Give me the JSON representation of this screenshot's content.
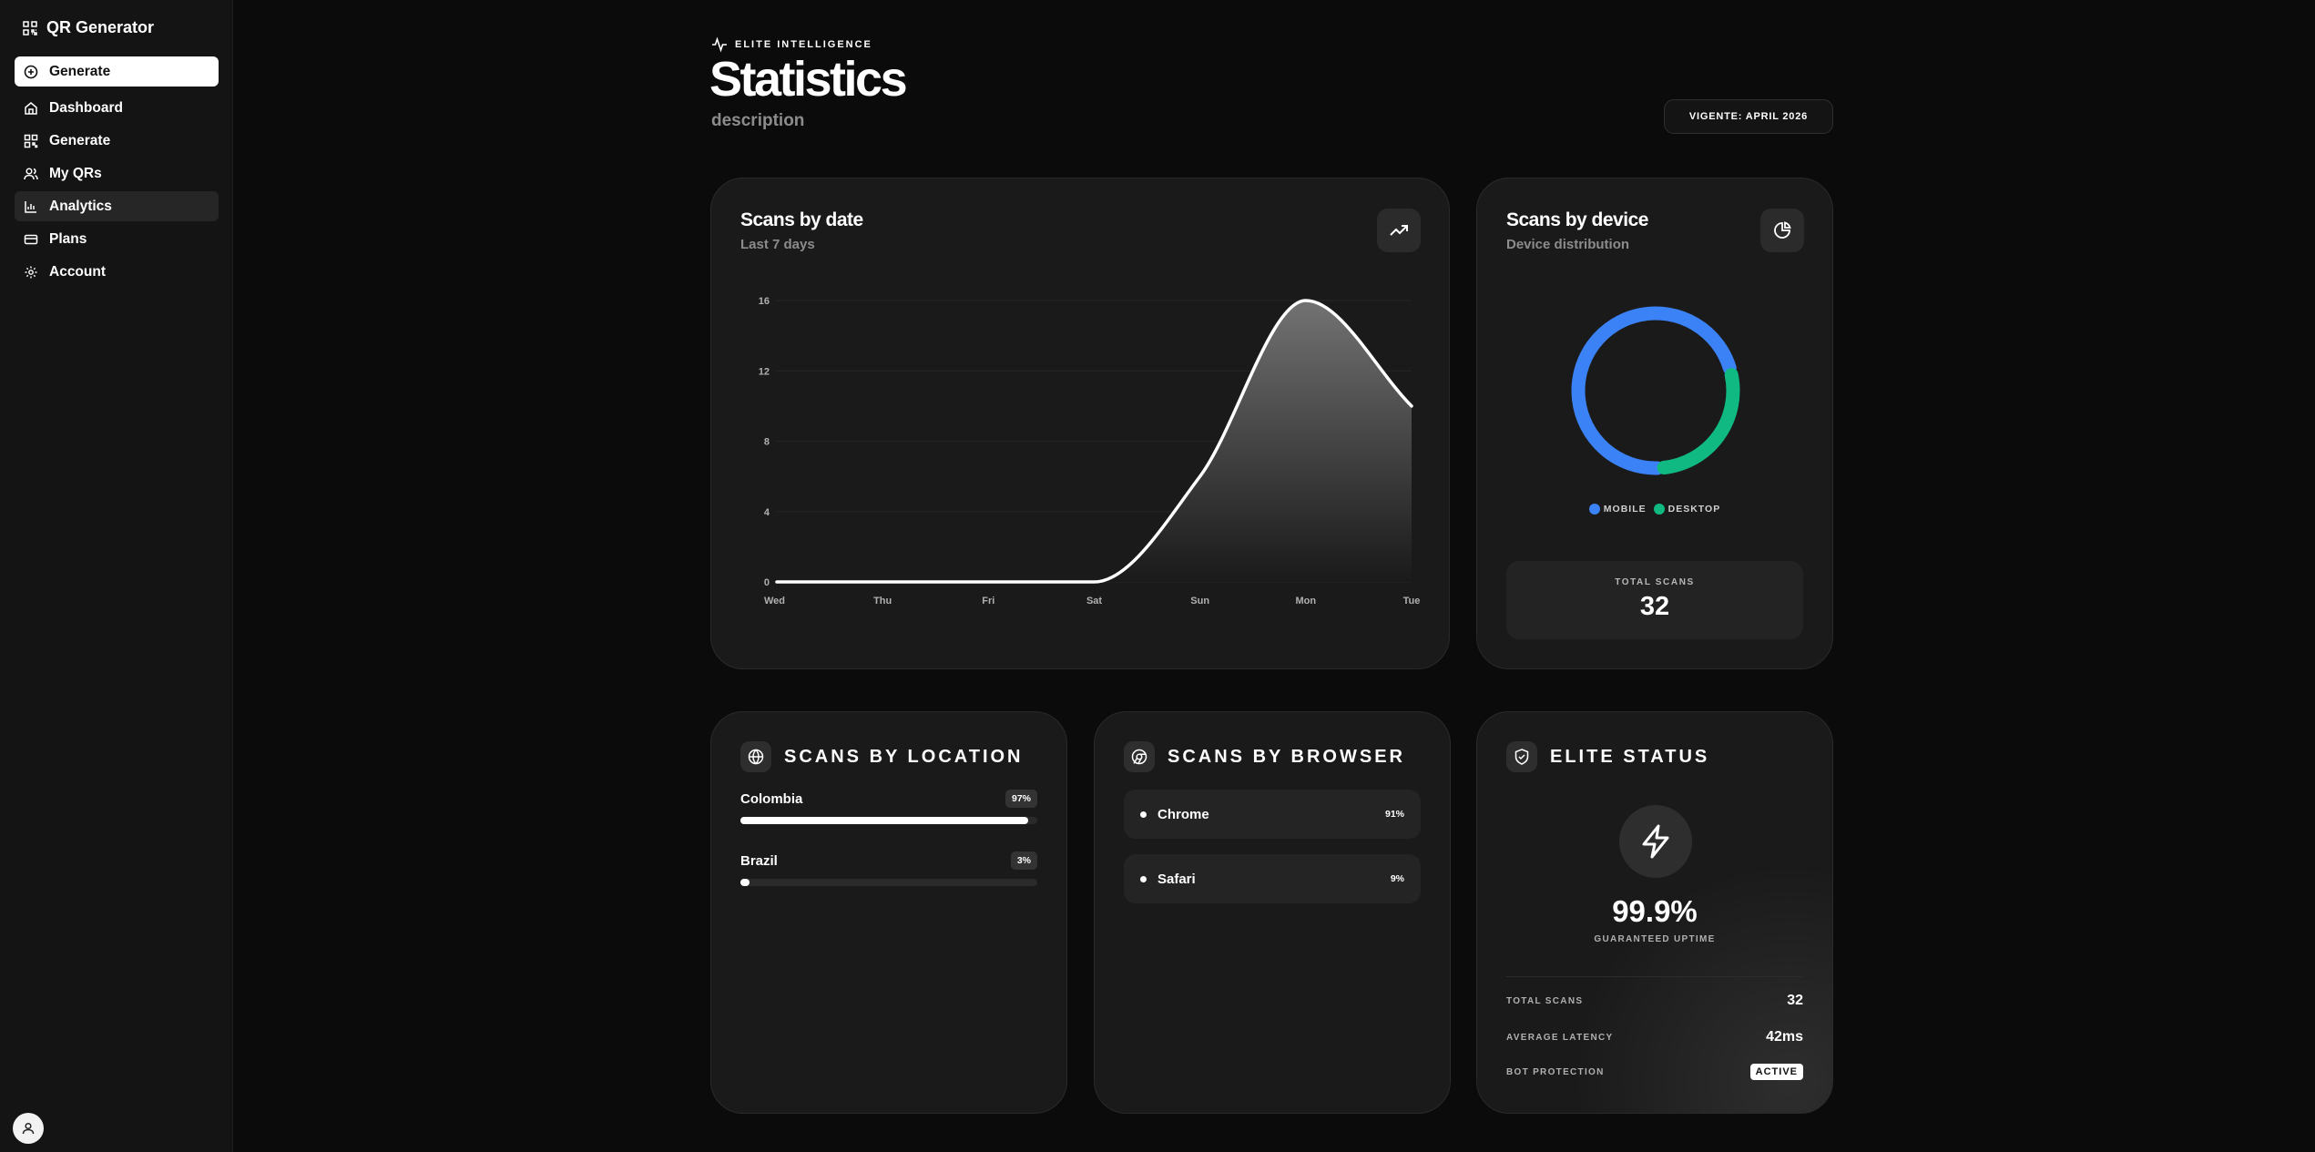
{
  "app": {
    "brand": "QR Generator"
  },
  "sidebar": {
    "primary_action": "Generate",
    "items": [
      {
        "label": "Dashboard",
        "icon": "home-icon"
      },
      {
        "label": "Generate",
        "icon": "qr-icon"
      },
      {
        "label": "My QRs",
        "icon": "users-icon"
      },
      {
        "label": "Analytics",
        "icon": "bar-chart-icon",
        "active": true
      },
      {
        "label": "Plans",
        "icon": "credit-card-icon"
      },
      {
        "label": "Account",
        "icon": "gear-icon"
      }
    ]
  },
  "header": {
    "eyebrow": "ELITE INTELLIGENCE",
    "title": "Statistics",
    "description": "description",
    "period": "VIGENTE: APRIL 2026"
  },
  "scans_by_date": {
    "title": "Scans by date",
    "subtitle": "Last 7 days"
  },
  "chart_data": {
    "type": "area",
    "categories": [
      "Wed",
      "Thu",
      "Fri",
      "Sat",
      "Sun",
      "Mon",
      "Tue"
    ],
    "series": [
      {
        "values": [
          0,
          0,
          0,
          0,
          6,
          16,
          10
        ]
      }
    ],
    "ylim": [
      0,
      16
    ],
    "yticks": [
      "0",
      "4",
      "8",
      "12",
      "16"
    ],
    "grid": true,
    "colors": {
      "line": "#ffffff",
      "fill_top": "#6b6b6b",
      "fill_bottom": "#1a1a1a"
    }
  },
  "scans_by_device": {
    "title": "Scans by device",
    "subtitle": "Device distribution",
    "segments": [
      {
        "label": "MOBILE",
        "percent": 72,
        "color": "#3b82f6"
      },
      {
        "label": "DESKTOP",
        "percent": 28,
        "color": "#10b981"
      }
    ],
    "total_label": "TOTAL SCANS",
    "total_value": "32"
  },
  "scans_by_location": {
    "title": "SCANS BY LOCATION",
    "items": [
      {
        "name": "Colombia",
        "percent_label": "97%",
        "percent": 97
      },
      {
        "name": "Brazil",
        "percent_label": "3%",
        "percent": 3
      }
    ]
  },
  "scans_by_browser": {
    "title": "SCANS BY BROWSER",
    "items": [
      {
        "name": "Chrome",
        "percent_label": "91%"
      },
      {
        "name": "Safari",
        "percent_label": "9%"
      }
    ]
  },
  "elite_status": {
    "title": "ELITE STATUS",
    "uptime": "99.9%",
    "uptime_label": "GUARANTEED UPTIME",
    "stats": [
      {
        "label": "TOTAL SCANS",
        "value": "32"
      },
      {
        "label": "AVERAGE LATENCY",
        "value": "42ms"
      },
      {
        "label": "BOT PROTECTION",
        "value": "ACTIVE"
      }
    ]
  }
}
